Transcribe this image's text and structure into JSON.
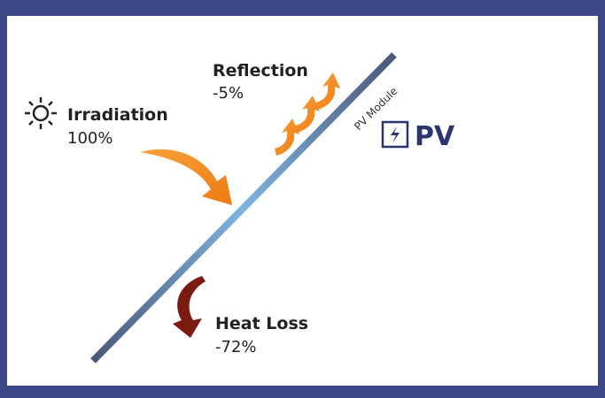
{
  "irradiation": {
    "label": "Irradiation",
    "value": "100%"
  },
  "reflection": {
    "label": "Reflection",
    "value": "-5%"
  },
  "heat_loss": {
    "label": "Heat Loss",
    "value": "-72%"
  },
  "module_label": "PV Module",
  "pv_badge": "PV"
}
